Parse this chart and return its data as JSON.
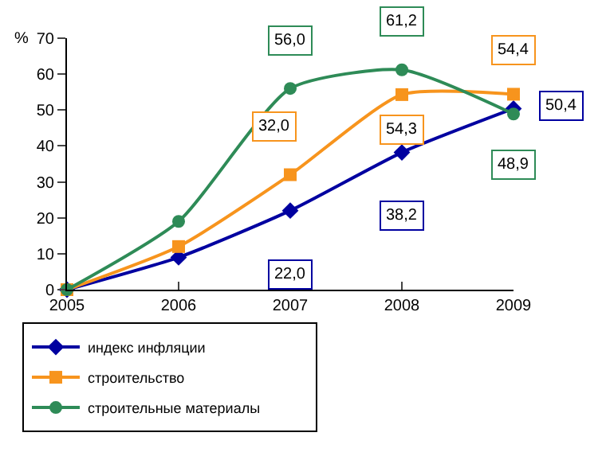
{
  "chart_data": {
    "type": "line",
    "ylabel": "%",
    "x": [
      2005,
      2006,
      2007,
      2008,
      2009
    ],
    "xlim": [
      2005,
      2009
    ],
    "xticks": [
      2005,
      2006,
      2007,
      2008,
      2009
    ],
    "ylim": [
      0,
      70
    ],
    "yticks": [
      0,
      10,
      20,
      30,
      40,
      50,
      60,
      70
    ],
    "legend": "bottom",
    "series": [
      {
        "name": "индекс инфляции",
        "color": "#0000a0",
        "marker": "diamond",
        "values": [
          0,
          9,
          22.0,
          38.2,
          50.4
        ],
        "value_labels": [
          null,
          null,
          "22,0",
          "38,2",
          "50,4"
        ]
      },
      {
        "name": "строительство",
        "color": "#f7941d",
        "marker": "square",
        "values": [
          0,
          12,
          32.0,
          54.3,
          54.4
        ],
        "value_labels": [
          null,
          null,
          "32,0",
          "54,3",
          "54,4"
        ]
      },
      {
        "name": "строительные материалы",
        "color": "#2e8b57",
        "marker": "circle",
        "values": [
          0,
          19,
          56.0,
          61.2,
          48.9
        ],
        "value_labels": [
          null,
          null,
          "56,0",
          "61,2",
          "48,9"
        ]
      }
    ]
  }
}
